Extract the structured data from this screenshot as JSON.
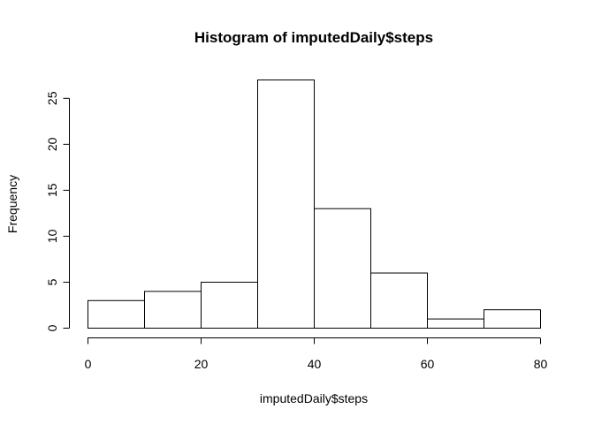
{
  "chart_data": {
    "type": "bar",
    "title": "Histogram of imputedDaily$steps",
    "xlabel": "imputedDaily$steps",
    "ylabel": "Frequency",
    "bins": [
      {
        "from": 0,
        "to": 10,
        "count": 3
      },
      {
        "from": 10,
        "to": 20,
        "count": 4
      },
      {
        "from": 20,
        "to": 30,
        "count": 5
      },
      {
        "from": 30,
        "to": 40,
        "count": 27
      },
      {
        "from": 40,
        "to": 50,
        "count": 13
      },
      {
        "from": 50,
        "to": 60,
        "count": 6
      },
      {
        "from": 60,
        "to": 70,
        "count": 1
      },
      {
        "from": 70,
        "to": 80,
        "count": 2
      }
    ],
    "xlim": [
      0,
      80
    ],
    "ylim": [
      0,
      27
    ],
    "x_ticks": [
      0,
      20,
      40,
      60,
      80
    ],
    "y_ticks": [
      0,
      5,
      10,
      15,
      20,
      25
    ],
    "grid": false,
    "bar_fill": "#ffffff",
    "bar_stroke": "#000000"
  }
}
